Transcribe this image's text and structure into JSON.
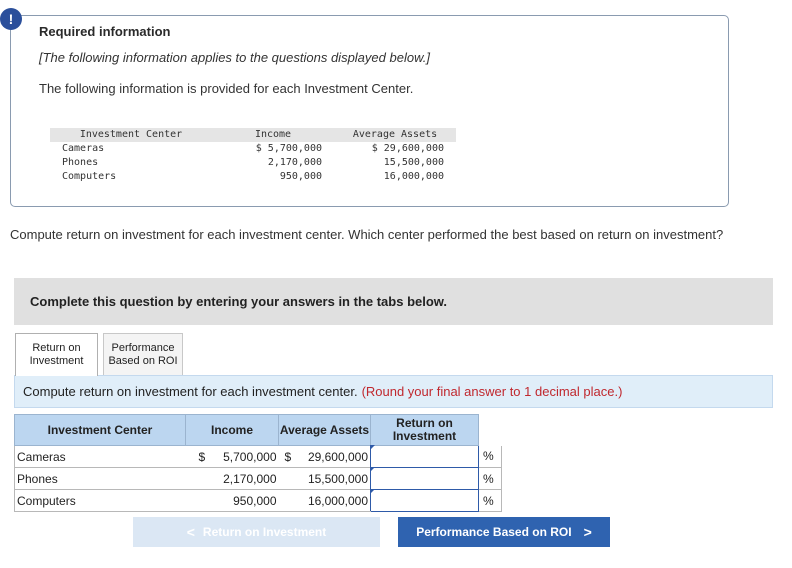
{
  "alert": {
    "symbol": "!"
  },
  "info": {
    "title": "Required information",
    "note": "[The following information applies to the questions displayed below.]",
    "description": "The following information is provided for each Investment Center.",
    "table": {
      "headers": [
        "Investment Center",
        "Income",
        "Average Assets"
      ],
      "rows": [
        {
          "name": "Cameras",
          "income": "$ 5,700,000",
          "assets": "$ 29,600,000"
        },
        {
          "name": "Phones",
          "income": "2,170,000",
          "assets": "15,500,000"
        },
        {
          "name": "Computers",
          "income": "950,000",
          "assets": "16,000,000"
        }
      ]
    }
  },
  "question": "Compute return on investment for each investment center. Which center performed the best based on return on investment?",
  "complete_banner": "Complete this question by entering your answers in the tabs below.",
  "tabs": [
    {
      "line1": "Return on",
      "line2": "Investment",
      "active": true
    },
    {
      "line1": "Performance",
      "line2": "Based on ROI",
      "active": false
    }
  ],
  "instruction": {
    "text": "Compute return on investment for each investment center.",
    "note": "(Round your final answer to 1 decimal place.)"
  },
  "answer_table": {
    "headers": {
      "center": "Investment Center",
      "income": "Income",
      "assets": "Average Assets",
      "roi_line1": "Return on",
      "roi_line2": "Investment"
    },
    "rows": [
      {
        "name": "Cameras",
        "income_symbol": "$",
        "income": "5,700,000",
        "assets_symbol": "$",
        "assets": "29,600,000",
        "roi": "",
        "unit": "%"
      },
      {
        "name": "Phones",
        "income_symbol": "",
        "income": "2,170,000",
        "assets_symbol": "",
        "assets": "15,500,000",
        "roi": "",
        "unit": "%"
      },
      {
        "name": "Computers",
        "income_symbol": "",
        "income": "950,000",
        "assets_symbol": "",
        "assets": "16,000,000",
        "roi": "",
        "unit": "%"
      }
    ]
  },
  "nav": {
    "prev_label": "Return on Investment",
    "prev_chevron": "<",
    "next_label": "Performance Based on ROI",
    "next_chevron": ">"
  }
}
